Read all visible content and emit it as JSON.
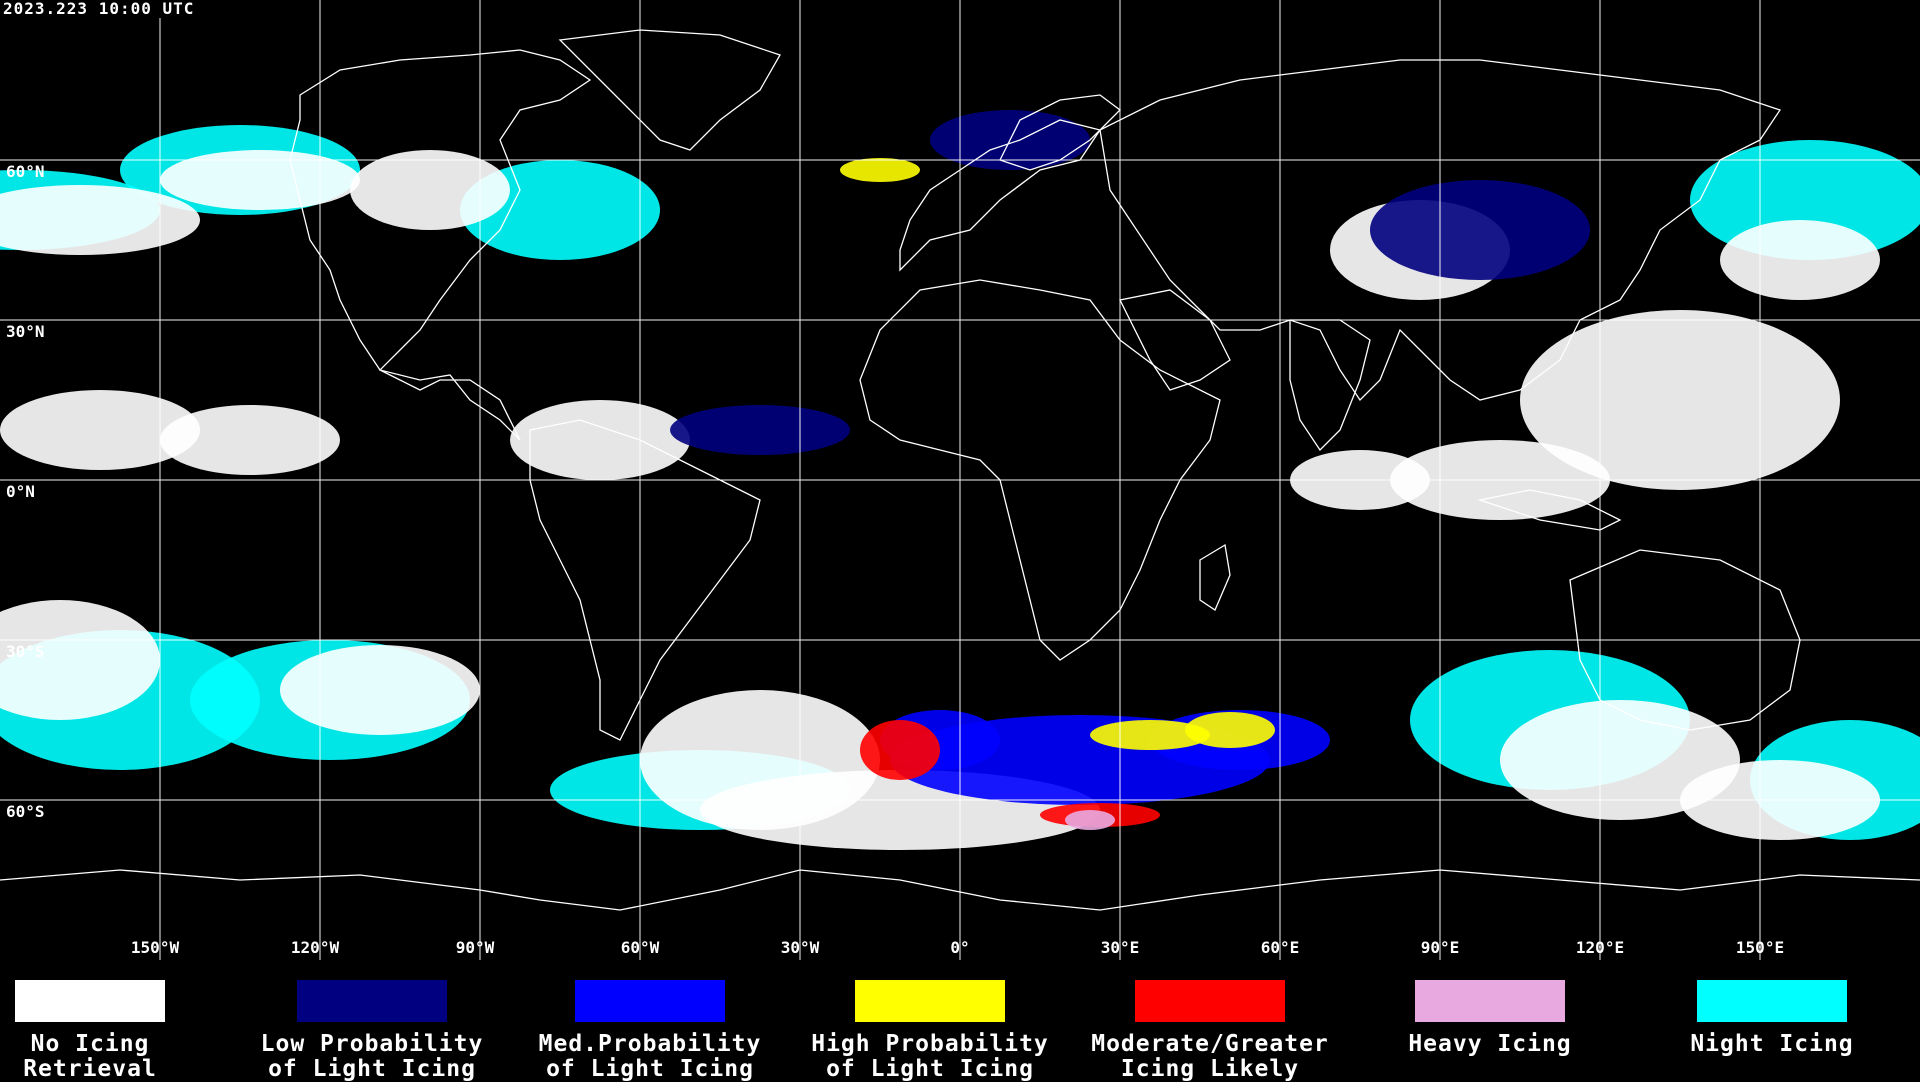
{
  "timestamp": "2023.223 10:00 UTC",
  "colors": {
    "background": "#000000",
    "grid": "#ffffff",
    "coastline": "#ffffff",
    "no_icing": "#ffffff",
    "low_probability": "#000080",
    "med_probability": "#0000ff",
    "high_probability": "#ffff00",
    "moderate_greater": "#ff0000",
    "heavy": "#e8a8e0",
    "night": "#00ffff"
  },
  "lat_labels": [
    "60°N",
    "30°N",
    "0°N",
    "30°S",
    "60°S"
  ],
  "lon_labels": [
    "150°W",
    "120°W",
    "90°W",
    "60°W",
    "30°W",
    "0°",
    "30°E",
    "60°E",
    "90°E",
    "120°E",
    "150°E"
  ],
  "legend": [
    {
      "label": "No Icing\nRetrieval",
      "color": "#ffffff"
    },
    {
      "label": "Low Probability\nof Light Icing",
      "color": "#000080"
    },
    {
      "label": "Med.Probability\nof Light Icing",
      "color": "#0000ff"
    },
    {
      "label": "High Probability\nof Light Icing",
      "color": "#ffff00"
    },
    {
      "label": "Moderate/Greater\nIcing Likely",
      "color": "#ff0000"
    },
    {
      "label": "Heavy Icing",
      "color": "#e8a8e0"
    },
    {
      "label": "Night Icing",
      "color": "#00ffff"
    }
  ]
}
